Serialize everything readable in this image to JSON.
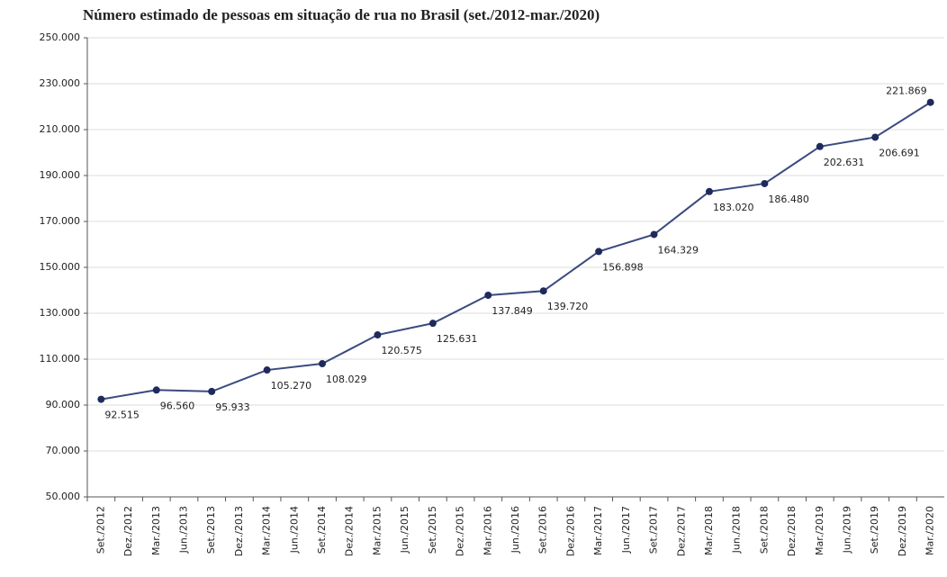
{
  "chart_data": {
    "type": "line",
    "title": "Número estimado de pessoas em situação de rua no Brasil (set./2012-mar./2020)",
    "categories": [
      "Set./2012",
      "Dez./2012",
      "Mar./2013",
      "Jun./2013",
      "Set./2013",
      "Dez./2013",
      "Mar./2014",
      "Jun./2014",
      "Set./2014",
      "Dez./2014",
      "Mar./2015",
      "Jun./2015",
      "Set./2015",
      "Dez./2015",
      "Mar./2016",
      "Jun./2016",
      "Set./2016",
      "Dez./2016",
      "Mar./2017",
      "Jun./2017",
      "Set./2017",
      "Dez./2017",
      "Mar./2018",
      "Jun./2018",
      "Set./2018",
      "Dez./2018",
      "Mar./2019",
      "Jun./2019",
      "Set./2019",
      "Dez./2019",
      "Mar./2020"
    ],
    "series": [
      {
        "color": "#3b4a7f",
        "x": [
          "Set./2012",
          "Mar./2013",
          "Set./2013",
          "Mar./2014",
          "Set./2014",
          "Mar./2015",
          "Set./2015",
          "Mar./2016",
          "Set./2016",
          "Mar./2017",
          "Set./2017",
          "Mar./2018",
          "Set./2018",
          "Mar./2019",
          "Set./2019",
          "Mar./2020"
        ],
        "values": [
          92515,
          96560,
          95933,
          105270,
          108029,
          120575,
          125631,
          137849,
          139720,
          156898,
          164329,
          183020,
          186480,
          202631,
          206691,
          221869
        ],
        "value_labels": [
          "92.515",
          "96.560",
          "95.933",
          "105.270",
          "108.029",
          "120.575",
          "125.631",
          "137.849",
          "139.720",
          "156.898",
          "164.329",
          "183.020",
          "186.480",
          "202.631",
          "206.691",
          "221.869"
        ]
      }
    ],
    "ylim": [
      50000,
      250000
    ],
    "yticks": [
      {
        "value": 50000,
        "label": "50.000"
      },
      {
        "value": 70000,
        "label": "70.000"
      },
      {
        "value": 90000,
        "label": "90.000"
      },
      {
        "value": 110000,
        "label": "110.000"
      },
      {
        "value": 130000,
        "label": "130.000"
      },
      {
        "value": 150000,
        "label": "150.000"
      },
      {
        "value": 170000,
        "label": "170.000"
      },
      {
        "value": 190000,
        "label": "190.000"
      },
      {
        "value": 210000,
        "label": "210.000"
      },
      {
        "value": 230000,
        "label": "230.000"
      },
      {
        "value": 250000,
        "label": "250.000"
      }
    ],
    "grid": true
  }
}
